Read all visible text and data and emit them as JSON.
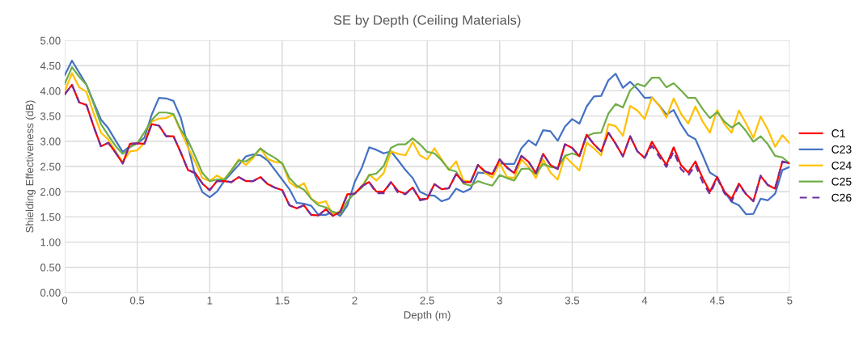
{
  "chart_data": {
    "type": "line",
    "title": "SE by Depth (Ceiling Materials)",
    "xlabel": "Depth (m)",
    "ylabel": "Shielding Effectiveness (dB)",
    "x": [
      0,
      0.05,
      0.1,
      0.15,
      0.2,
      0.25,
      0.3,
      0.35,
      0.4,
      0.45,
      0.5,
      0.55,
      0.6,
      0.65,
      0.7,
      0.75,
      0.8,
      0.85,
      0.9,
      0.95,
      1,
      1.05,
      1.1,
      1.15,
      1.2,
      1.25,
      1.3,
      1.35,
      1.4,
      1.45,
      1.5,
      1.55,
      1.6,
      1.65,
      1.7,
      1.75,
      1.8,
      1.85,
      1.9,
      1.95,
      2,
      2.05,
      2.1,
      2.15,
      2.2,
      2.25,
      2.3,
      2.35,
      2.4,
      2.45,
      2.5,
      2.55,
      2.6,
      2.65,
      2.7,
      2.75,
      2.8,
      2.85,
      2.9,
      2.95,
      3,
      3.05,
      3.1,
      3.15,
      3.2,
      3.25,
      3.3,
      3.35,
      3.4,
      3.45,
      3.5,
      3.55,
      3.6,
      3.65,
      3.7,
      3.75,
      3.8,
      3.85,
      3.9,
      3.95,
      4,
      4.05,
      4.1,
      4.15,
      4.2,
      4.25,
      4.3,
      4.35,
      4.4,
      4.45,
      4.5,
      4.55,
      4.6,
      4.65,
      4.7,
      4.75,
      4.8,
      4.85,
      4.9,
      4.95,
      5
    ],
    "series": [
      {
        "name": "C1",
        "color": "#ff0000",
        "line_style": "solid",
        "values": [
          3.93,
          4.12,
          3.77,
          3.72,
          3.29,
          2.9,
          2.97,
          2.78,
          2.56,
          2.95,
          2.96,
          2.95,
          3.34,
          3.31,
          3.1,
          3.1,
          2.78,
          2.43,
          2.37,
          2.16,
          2.03,
          2.21,
          2.21,
          2.19,
          2.29,
          2.21,
          2.21,
          2.29,
          2.15,
          2.08,
          2.03,
          1.73,
          1.67,
          1.73,
          1.54,
          1.53,
          1.65,
          1.52,
          1.6,
          1.95,
          1.96,
          2.11,
          2.19,
          2.0,
          2.0,
          2.19,
          2.01,
          1.96,
          2.08,
          1.85,
          1.86,
          2.15,
          2.05,
          2.07,
          2.35,
          2.19,
          2.19,
          2.53,
          2.4,
          2.35,
          2.64,
          2.48,
          2.37,
          2.71,
          2.59,
          2.37,
          2.75,
          2.53,
          2.45,
          2.94,
          2.87,
          2.7,
          3.13,
          2.94,
          2.8,
          3.17,
          2.95,
          2.7,
          3.1,
          2.8,
          2.67,
          2.99,
          2.75,
          2.53,
          2.88,
          2.53,
          2.38,
          2.6,
          2.27,
          2.0,
          2.29,
          2.0,
          1.86,
          2.16,
          1.95,
          1.81,
          2.31,
          2.13,
          2.06,
          2.6,
          2.56
        ]
      },
      {
        "name": "C23",
        "color": "#4472c4",
        "line_style": "solid",
        "values": [
          4.31,
          4.6,
          4.36,
          4.12,
          3.77,
          3.43,
          3.26,
          3.02,
          2.79,
          2.9,
          2.96,
          3.07,
          3.53,
          3.86,
          3.85,
          3.8,
          3.47,
          2.91,
          2.32,
          1.99,
          1.89,
          2.0,
          2.21,
          2.37,
          2.53,
          2.7,
          2.74,
          2.72,
          2.62,
          2.43,
          2.24,
          2.05,
          1.78,
          1.76,
          1.72,
          1.54,
          1.54,
          1.6,
          1.52,
          1.73,
          2.19,
          2.48,
          2.88,
          2.83,
          2.76,
          2.8,
          2.62,
          2.43,
          2.27,
          2.0,
          1.93,
          1.92,
          1.81,
          1.86,
          2.06,
          1.99,
          2.06,
          2.38,
          2.37,
          2.35,
          2.56,
          2.55,
          2.55,
          2.86,
          3.02,
          2.92,
          3.22,
          3.2,
          3.01,
          3.29,
          3.44,
          3.35,
          3.69,
          3.89,
          3.9,
          4.21,
          4.34,
          4.06,
          4.18,
          4.04,
          3.86,
          3.87,
          3.71,
          3.53,
          3.62,
          3.34,
          3.12,
          3.04,
          2.72,
          2.38,
          2.29,
          2.0,
          1.8,
          1.73,
          1.55,
          1.56,
          1.86,
          1.83,
          1.96,
          2.43,
          2.49
        ]
      },
      {
        "name": "C24",
        "color": "#ffc000",
        "line_style": "solid",
        "values": [
          3.99,
          4.35,
          4.07,
          3.98,
          3.55,
          3.17,
          3.04,
          2.8,
          2.59,
          2.8,
          2.82,
          2.97,
          3.39,
          3.45,
          3.46,
          3.53,
          3.2,
          2.88,
          2.59,
          2.27,
          2.21,
          2.32,
          2.24,
          2.43,
          2.64,
          2.53,
          2.67,
          2.86,
          2.65,
          2.59,
          2.57,
          2.19,
          2.08,
          2.17,
          1.86,
          1.77,
          1.81,
          1.54,
          1.62,
          1.95,
          1.96,
          2.11,
          2.34,
          2.22,
          2.37,
          2.8,
          2.75,
          2.72,
          2.99,
          2.72,
          2.64,
          2.86,
          2.64,
          2.43,
          2.6,
          2.22,
          2.2,
          2.53,
          2.37,
          2.28,
          2.56,
          2.29,
          2.27,
          2.64,
          2.49,
          2.27,
          2.64,
          2.38,
          2.24,
          2.7,
          2.56,
          2.42,
          2.97,
          2.86,
          2.72,
          3.34,
          3.3,
          3.11,
          3.7,
          3.61,
          3.44,
          3.87,
          3.71,
          3.47,
          3.85,
          3.55,
          3.35,
          3.69,
          3.39,
          3.17,
          3.62,
          3.34,
          3.17,
          3.61,
          3.35,
          3.07,
          3.49,
          3.23,
          2.89,
          3.12,
          2.96
        ]
      },
      {
        "name": "C25",
        "color": "#70ad47",
        "line_style": "solid",
        "values": [
          4.14,
          4.47,
          4.28,
          4.12,
          3.74,
          3.34,
          3.12,
          2.91,
          2.75,
          2.88,
          2.96,
          3.18,
          3.42,
          3.57,
          3.57,
          3.54,
          3.23,
          3.02,
          2.7,
          2.37,
          2.21,
          2.24,
          2.24,
          2.42,
          2.62,
          2.6,
          2.7,
          2.86,
          2.75,
          2.67,
          2.56,
          2.27,
          2.12,
          2.04,
          1.86,
          1.73,
          1.69,
          1.6,
          1.56,
          1.81,
          1.97,
          2.08,
          2.33,
          2.36,
          2.51,
          2.87,
          2.94,
          2.94,
          3.06,
          2.94,
          2.79,
          2.76,
          2.62,
          2.44,
          2.4,
          2.16,
          2.12,
          2.21,
          2.16,
          2.12,
          2.33,
          2.27,
          2.22,
          2.45,
          2.46,
          2.35,
          2.55,
          2.49,
          2.47,
          2.71,
          2.76,
          2.71,
          3.1,
          3.16,
          3.17,
          3.55,
          3.74,
          3.67,
          4.01,
          4.14,
          4.09,
          4.26,
          4.26,
          4.07,
          4.15,
          4.01,
          3.86,
          3.86,
          3.64,
          3.46,
          3.58,
          3.39,
          3.27,
          3.37,
          3.2,
          2.99,
          3.1,
          2.94,
          2.71,
          2.68,
          2.56
        ]
      },
      {
        "name": "C26",
        "color": "#7030a0",
        "line_style": "dashed",
        "values": [
          3.93,
          4.12,
          3.77,
          3.72,
          3.29,
          2.9,
          2.97,
          2.78,
          2.56,
          2.95,
          2.96,
          2.95,
          3.34,
          3.31,
          3.1,
          3.1,
          2.78,
          2.43,
          2.37,
          2.16,
          2.03,
          2.21,
          2.21,
          2.19,
          2.29,
          2.21,
          2.21,
          2.29,
          2.15,
          2.08,
          2.03,
          1.73,
          1.67,
          1.73,
          1.54,
          1.53,
          1.65,
          1.52,
          1.6,
          1.95,
          1.96,
          2.11,
          2.19,
          1.97,
          1.97,
          2.19,
          1.97,
          1.95,
          2.08,
          1.83,
          1.86,
          2.15,
          2.05,
          2.07,
          2.35,
          2.19,
          2.19,
          2.53,
          2.4,
          2.35,
          2.64,
          2.48,
          2.37,
          2.71,
          2.59,
          2.37,
          2.75,
          2.53,
          2.45,
          2.94,
          2.87,
          2.7,
          3.13,
          2.94,
          2.8,
          3.17,
          2.95,
          2.7,
          3.1,
          2.8,
          2.67,
          2.91,
          2.7,
          2.49,
          2.8,
          2.45,
          2.32,
          2.53,
          2.19,
          1.95,
          2.27,
          1.97,
          1.81,
          2.13,
          1.95,
          1.81,
          2.32,
          2.13,
          2.08,
          2.6,
          2.56
        ]
      }
    ],
    "xlim": [
      0,
      5
    ],
    "xticks": [
      0,
      0.5,
      1,
      1.5,
      2,
      2.5,
      3,
      3.5,
      4,
      4.5,
      5
    ],
    "ylim": [
      0,
      5
    ],
    "yticks": [
      {
        "value": 0,
        "label": "0.00"
      },
      {
        "value": 0.5,
        "label": "0.50"
      },
      {
        "value": 1,
        "label": "1.00"
      },
      {
        "value": 1.5,
        "label": "1.50"
      },
      {
        "value": 2,
        "label": "2.00"
      },
      {
        "value": 2.5,
        "label": "2.50"
      },
      {
        "value": 3,
        "label": "3.00"
      },
      {
        "value": 3.5,
        "label": "3.50"
      },
      {
        "value": 4,
        "label": "4.00"
      },
      {
        "value": 4.5,
        "label": "4.50"
      },
      {
        "value": 5,
        "label": "5.00"
      }
    ],
    "grid": true,
    "legend": "right",
    "marker": "none"
  }
}
